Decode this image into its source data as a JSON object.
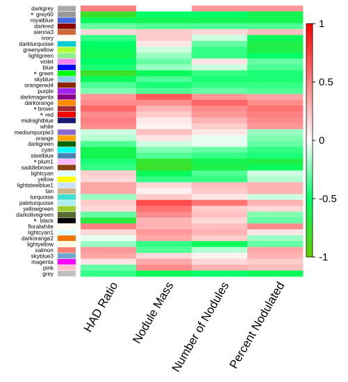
{
  "chart_data": {
    "type": "heatmap",
    "columns": [
      "HAD Ratio",
      "Nodule Mass",
      "Number of Nodules",
      "Percent Nodulated"
    ],
    "rows": [
      {
        "module": "darkgrey",
        "color": "#a9a9a9",
        "starred": false,
        "values": [
          0.5,
          0.0,
          0.4,
          0.4
        ]
      },
      {
        "module": "grey60",
        "color": "#999999",
        "starred": true,
        "values": [
          -0.8,
          -0.5,
          -0.5,
          -0.6
        ]
      },
      {
        "module": "royalblue",
        "color": "#4169e1",
        "starred": false,
        "values": [
          -0.55,
          -0.6,
          -0.6,
          -0.6
        ]
      },
      {
        "module": "darkred",
        "color": "#8b0000",
        "starred": false,
        "values": [
          -0.3,
          -0.35,
          -0.35,
          -0.35
        ]
      },
      {
        "module": "sienna3",
        "color": "#cd6839",
        "starred": false,
        "values": [
          0.15,
          0.2,
          0.15,
          0.25
        ]
      },
      {
        "module": "ivory",
        "color": "#fffff0",
        "starred": false,
        "values": [
          -0.4,
          0.2,
          -0.1,
          -0.55
        ]
      },
      {
        "module": "darkturquoise",
        "color": "#00ced1",
        "starred": false,
        "values": [
          -0.5,
          0.1,
          -0.3,
          -0.65
        ]
      },
      {
        "module": "greenyellow",
        "color": "#adff2f",
        "starred": false,
        "values": [
          -0.55,
          -0.1,
          -0.4,
          -0.65
        ]
      },
      {
        "module": "lightgreen",
        "color": "#90ee90",
        "starred": false,
        "values": [
          -0.6,
          -0.2,
          -0.4,
          -0.5
        ]
      },
      {
        "module": "violet",
        "color": "#ee82ee",
        "starred": false,
        "values": [
          -0.5,
          -0.3,
          0.1,
          -0.3
        ]
      },
      {
        "module": "blue",
        "color": "#0000ff",
        "starred": false,
        "values": [
          -0.45,
          -0.2,
          -0.1,
          -0.35
        ]
      },
      {
        "module": "green",
        "color": "#00ff00",
        "starred": true,
        "values": [
          -0.8,
          -0.55,
          -0.4,
          -0.45
        ]
      },
      {
        "module": "skyblue",
        "color": "#87ceeb",
        "starred": false,
        "values": [
          -0.55,
          -0.35,
          -0.45,
          -0.45
        ]
      },
      {
        "module": "orangered4",
        "color": "#8b2500",
        "starred": false,
        "values": [
          -0.35,
          -0.45,
          -0.4,
          -0.4
        ]
      },
      {
        "module": "purple",
        "color": "#a020f0",
        "starred": false,
        "values": [
          -0.25,
          -0.35,
          -0.3,
          -0.35
        ]
      },
      {
        "module": "darkmagenta",
        "color": "#8b008b",
        "starred": false,
        "values": [
          0.4,
          0.65,
          0.4,
          0.35
        ]
      },
      {
        "module": "darkorange",
        "color": "#ff8c00",
        "starred": false,
        "values": [
          0.45,
          0.45,
          0.6,
          0.45
        ]
      },
      {
        "module": "brown",
        "color": "#a52a2a",
        "starred": true,
        "values": [
          0.6,
          0.3,
          0.45,
          0.55
        ]
      },
      {
        "module": "red",
        "color": "#ff0000",
        "starred": true,
        "values": [
          0.45,
          0.2,
          0.4,
          0.5
        ]
      },
      {
        "module": "midnightblue",
        "color": "#191970",
        "starred": false,
        "values": [
          0.5,
          0.1,
          0.3,
          0.45
        ]
      },
      {
        "module": "white",
        "color": "#ffffff",
        "starred": false,
        "values": [
          0.45,
          0.05,
          0.2,
          0.4
        ]
      },
      {
        "module": "mediumpurple3",
        "color": "#8968cd",
        "starred": false,
        "values": [
          -0.1,
          0.25,
          0.1,
          -0.2
        ]
      },
      {
        "module": "orange",
        "color": "#ffa500",
        "starred": false,
        "values": [
          -0.15,
          0.1,
          -0.05,
          -0.25
        ]
      },
      {
        "module": "darkgreen",
        "color": "#006400",
        "starred": false,
        "values": [
          -0.35,
          -0.1,
          -0.05,
          -0.3
        ]
      },
      {
        "module": "cyan",
        "color": "#00ffff",
        "starred": false,
        "values": [
          -0.6,
          -0.25,
          -0.3,
          -0.4
        ]
      },
      {
        "module": "steelblue",
        "color": "#4682b4",
        "starred": false,
        "values": [
          -0.6,
          -0.35,
          -0.4,
          -0.45
        ]
      },
      {
        "module": "plum1",
        "color": "#ffbbff",
        "starred": true,
        "values": [
          -0.45,
          -0.75,
          -0.6,
          -0.65
        ]
      },
      {
        "module": "saddlebrown",
        "color": "#8b4513",
        "starred": false,
        "values": [
          -0.4,
          -0.8,
          -0.65,
          -0.55
        ]
      },
      {
        "module": "lightcyan",
        "color": "#e0ffff",
        "starred": false,
        "values": [
          0.2,
          -0.55,
          -0.35,
          -0.1
        ]
      },
      {
        "module": "yellow",
        "color": "#ffff00",
        "starred": false,
        "values": [
          0.15,
          -0.4,
          -0.4,
          -0.15
        ]
      },
      {
        "module": "lightsteelblue1",
        "color": "#cae1ff",
        "starred": false,
        "values": [
          0.35,
          0.15,
          0.25,
          0.3
        ]
      },
      {
        "module": "tan",
        "color": "#d2b48c",
        "starred": false,
        "values": [
          0.35,
          0.05,
          0.2,
          0.3
        ]
      },
      {
        "module": "turquoise",
        "color": "#40e0d0",
        "starred": false,
        "values": [
          -0.2,
          0.2,
          0.1,
          -0.1
        ]
      },
      {
        "module": "paleturquoise",
        "color": "#afeeee",
        "starred": false,
        "values": [
          0.2,
          0.7,
          0.55,
          0.3
        ]
      },
      {
        "module": "yellowgreen",
        "color": "#9acd32",
        "starred": false,
        "values": [
          0.15,
          0.55,
          0.2,
          0.15
        ]
      },
      {
        "module": "darkolivegreen",
        "color": "#556b2f",
        "starred": false,
        "values": [
          -0.3,
          0.45,
          0.25,
          -0.25
        ]
      },
      {
        "module": "black",
        "color": "#000000",
        "starred": true,
        "values": [
          -0.7,
          0.3,
          0.15,
          -0.3
        ]
      },
      {
        "module": "floralwhite",
        "color": "#fffaf0",
        "starred": false,
        "values": [
          0.5,
          0.3,
          0.25,
          0.45
        ]
      },
      {
        "module": "lightcyan1",
        "color": "#e0ffff",
        "starred": false,
        "values": [
          0.15,
          0.4,
          0.3,
          0.1
        ]
      },
      {
        "module": "darkorange2",
        "color": "#ee7600",
        "starred": false,
        "values": [
          -0.05,
          0.35,
          0.2,
          -0.2
        ]
      },
      {
        "module": "lightyellow",
        "color": "#ffffe0",
        "starred": false,
        "values": [
          -0.2,
          -0.4,
          -0.55,
          -0.3
        ]
      },
      {
        "module": "salmon",
        "color": "#fa8072",
        "starred": false,
        "values": [
          0.4,
          -0.35,
          -0.15,
          0.35
        ]
      },
      {
        "module": "skyblue3",
        "color": "#6ca6cd",
        "starred": false,
        "values": [
          0.35,
          0.15,
          0.05,
          0.3
        ]
      },
      {
        "module": "magenta",
        "color": "#ff00ff",
        "starred": false,
        "values": [
          0.1,
          0.35,
          0.15,
          0.2
        ]
      },
      {
        "module": "pink",
        "color": "#ffc0cb",
        "starred": false,
        "values": [
          -0.3,
          0.45,
          0.3,
          0.25
        ]
      },
      {
        "module": "grey",
        "color": "#bebebe",
        "starred": false,
        "values": [
          -0.4,
          -0.55,
          -0.5,
          -0.55
        ]
      }
    ],
    "colorbar": {
      "range": [
        -1,
        1
      ],
      "ticks": [
        1,
        0.5,
        0,
        -0.5,
        -1
      ],
      "tick_labels": [
        "1",
        "0.5",
        "0",
        "-0.5",
        "-1"
      ],
      "colors": {
        "negative_end": "#66cc00",
        "negative_mid": "#00ff66",
        "zero": "#ffffff",
        "positive_end": "#ff0000"
      }
    },
    "star_symbol": "*"
  }
}
